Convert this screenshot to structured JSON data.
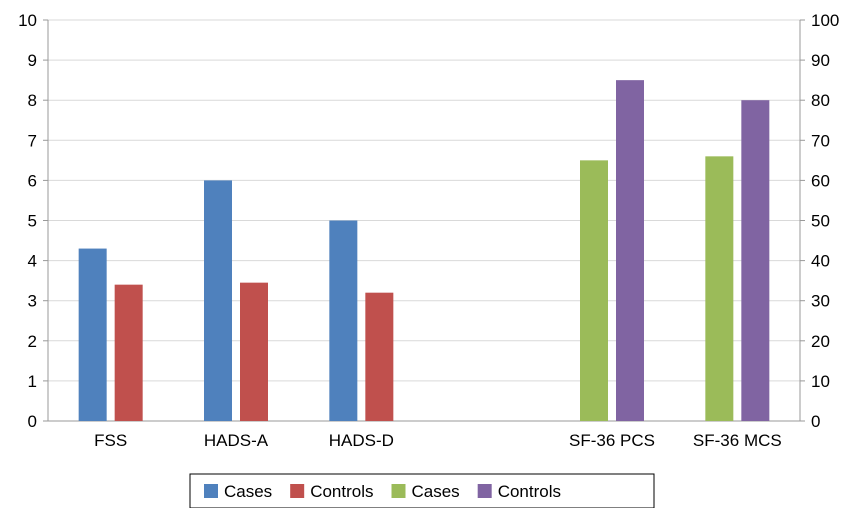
{
  "chart_data": {
    "type": "bar",
    "categories": [
      "FSS",
      "HADS-A",
      "HADS-D",
      "SF-36 PCS",
      "SF-36 MCS"
    ],
    "axes": {
      "left": {
        "min": 0,
        "max": 10,
        "step": 1
      },
      "right": {
        "min": 0,
        "max": 100,
        "step": 10
      }
    },
    "grid": true,
    "legend_placement": "bottom-center",
    "series": [
      {
        "name": "Cases",
        "axis": "left",
        "color": "#4F81BD",
        "values": [
          4.3,
          6.0,
          5.0,
          null,
          null
        ]
      },
      {
        "name": "Controls",
        "axis": "left",
        "color": "#C0504D",
        "values": [
          3.4,
          3.45,
          3.2,
          null,
          null
        ]
      },
      {
        "name": "Cases",
        "axis": "right",
        "color": "#9BBB59",
        "values": [
          null,
          null,
          null,
          65,
          66
        ]
      },
      {
        "name": "Controls",
        "axis": "right",
        "color": "#8064A2",
        "values": [
          null,
          null,
          null,
          85,
          80
        ]
      }
    ]
  }
}
